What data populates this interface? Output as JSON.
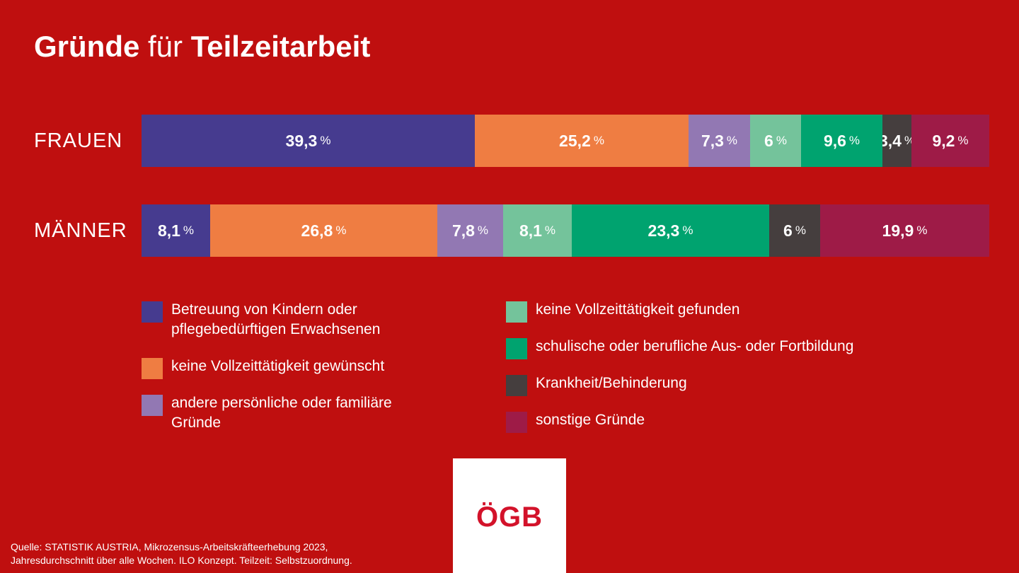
{
  "header": {
    "title_part1": "Gründe",
    "title_part2": "für",
    "title_part3": "Teilzeitarbeit"
  },
  "chart_data": {
    "type": "bar",
    "orientation": "horizontal",
    "stacked": true,
    "title": "Gründe für Teilzeitarbeit",
    "categories": [
      "FRAUEN",
      "MÄNNER"
    ],
    "unit": "%",
    "series": [
      {
        "name": "Betreuung von Kindern oder pflegebedürftigen Erwachsenen",
        "color": "#463b8f",
        "values": [
          39.3,
          8.1
        ],
        "labels": [
          "39,3",
          "8,1"
        ]
      },
      {
        "name": "keine Vollzeittätigkeit gewünscht",
        "color": "#ef7d42",
        "values": [
          25.2,
          26.8
        ],
        "labels": [
          "25,2",
          "26,8"
        ]
      },
      {
        "name": "andere persönliche oder familiäre Gründe",
        "color": "#9278b3",
        "values": [
          7.3,
          7.8
        ],
        "labels": [
          "7,3",
          "7,8"
        ]
      },
      {
        "name": "keine Vollzeittätigkeit gefunden",
        "color": "#74c39b",
        "values": [
          6,
          8.1
        ],
        "labels": [
          "6",
          "8,1"
        ]
      },
      {
        "name": "schulische oder berufliche Aus- oder Fortbildung",
        "color": "#00a36f",
        "values": [
          9.6,
          23.3
        ],
        "labels": [
          "9,6",
          "23,3"
        ]
      },
      {
        "name": "Krankheit/Behinderung",
        "color": "#453e3e",
        "values": [
          3.4,
          6
        ],
        "labels": [
          "3,4",
          "6"
        ]
      },
      {
        "name": "sonstige Gründe",
        "color": "#9e1b47",
        "values": [
          9.2,
          19.9
        ],
        "labels": [
          "9,2",
          "19,9"
        ]
      }
    ],
    "legend": {
      "placement": "bottom",
      "columns": [
        [
          "Betreuung von Kindern oder pflegebedürftigen Erwachsenen",
          "keine Vollzeittätigkeit gewünscht",
          "andere persönliche oder familiäre Gründe"
        ],
        [
          "keine Vollzeittätigkeit gefunden",
          "schulische oder berufliche Aus- oder Fortbildung",
          "Krankheit/Behinderung",
          "sonstige Gründe"
        ]
      ]
    },
    "grid": false
  },
  "logo": {
    "text": "ÖGB",
    "color": "#d3122a",
    "accent_color": "#cfcfcf"
  },
  "source": {
    "line1": "Quelle: STATISTIK AUSTRIA, Mikrozensus-Arbeitskräfteerhebung 2023,",
    "line2": "Jahresdurchschnitt über alle Wochen. ILO Konzept. Teilzeit: Selbstzuordnung."
  },
  "colors": {
    "background": "#bf0f0f",
    "text": "#ffffff"
  }
}
